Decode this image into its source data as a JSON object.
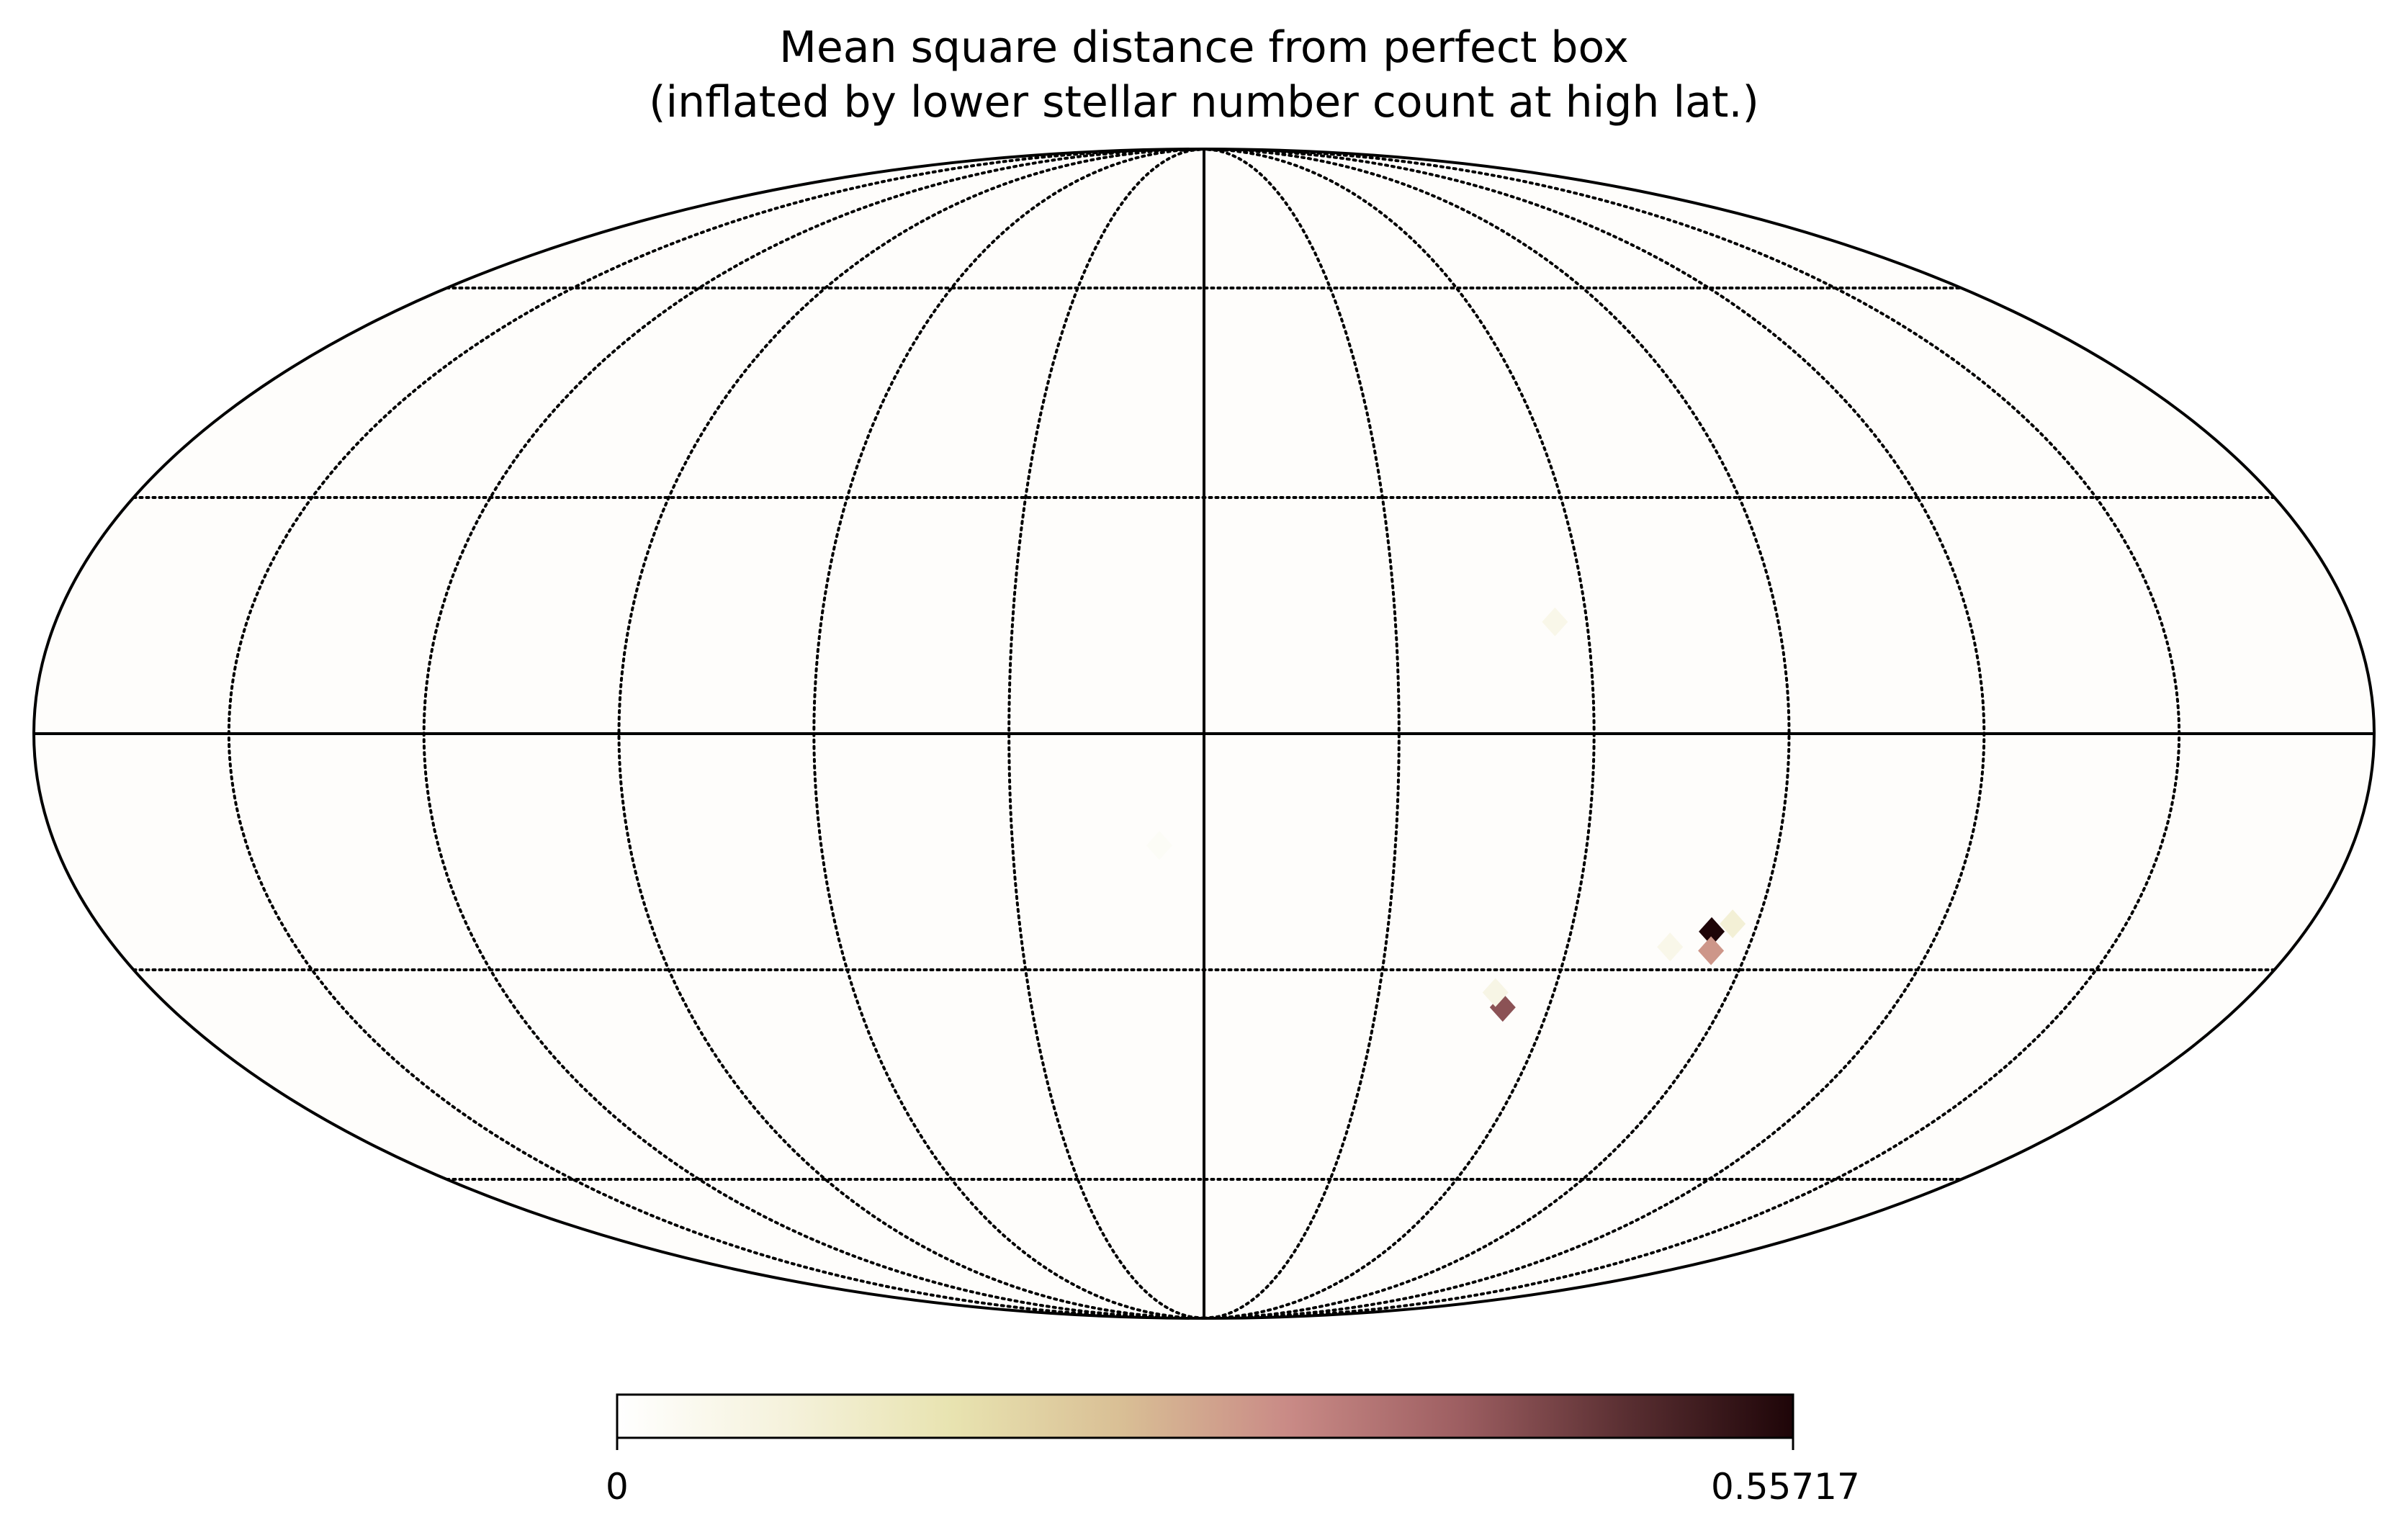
{
  "title_lines": [
    "Mean square distance from perfect box",
    "(inflated by lower stellar number count at high lat.)"
  ],
  "chart_data": {
    "type": "heatmap",
    "projection": "mollweide",
    "title": "Mean square distance from perfect box (inflated by lower stellar number count at high lat.)",
    "graticule": {
      "parallels_deg": [
        -60,
        -30,
        30,
        60
      ],
      "meridians_deg": [
        -150,
        -120,
        -90,
        -60,
        -30,
        30,
        60,
        90,
        120,
        150
      ],
      "style": "dotted"
    },
    "colorbar": {
      "min": 0,
      "max": 0.55717,
      "min_label": "0",
      "max_label": "0.55717",
      "colormap": [
        "#ffffff",
        "#f5f2dc",
        "#e8e3b0",
        "#d9bf95",
        "#c98a86",
        "#9e5f62",
        "#5a2f32",
        "#1e0508"
      ]
    },
    "background_value": 0.01,
    "hotspots": [
      {
        "lon": 83,
        "lat": -25,
        "value": 0.557
      },
      {
        "lon": 84,
        "lat": -27.5,
        "value": 0.3
      },
      {
        "lon": 86,
        "lat": -24,
        "value": 0.09
      },
      {
        "lon": 77,
        "lat": -27,
        "value": 0.05
      },
      {
        "lon": 52,
        "lat": -35,
        "value": 0.42
      },
      {
        "lon": 50,
        "lat": -33,
        "value": 0.06
      },
      {
        "lon": 55,
        "lat": 14,
        "value": 0.05
      },
      {
        "lon": -7,
        "lat": -14,
        "value": 0.02
      }
    ]
  }
}
